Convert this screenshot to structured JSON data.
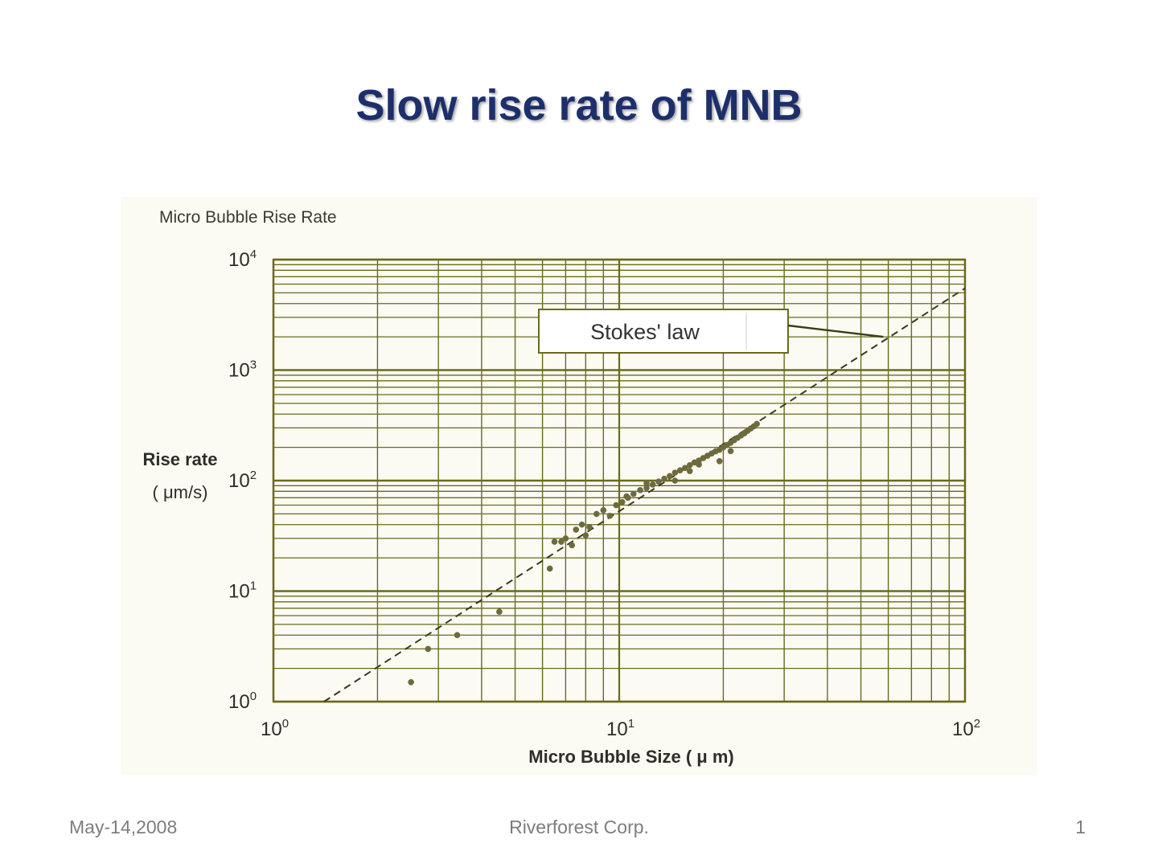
{
  "slide": {
    "title": "Slow rise rate of MNB",
    "date": "May-14,2008",
    "company": "Riverforest Corp.",
    "page_number": "1"
  },
  "chart_data": {
    "type": "scatter",
    "title": "Micro Bubble Rise Rate",
    "xlabel": "Micro Bubble Size ( μ m)",
    "ylabel": "Rise rate",
    "ylabel_unit": "( μm/s)",
    "x_scale": "log",
    "y_scale": "log",
    "xlim": [
      1,
      100
    ],
    "ylim": [
      1,
      10000
    ],
    "x_ticks": [
      {
        "base": "10",
        "exp": "0",
        "value": 1
      },
      {
        "base": "10",
        "exp": "1",
        "value": 10
      },
      {
        "base": "10",
        "exp": "2",
        "value": 100
      }
    ],
    "y_ticks": [
      {
        "base": "10",
        "exp": "0",
        "value": 1
      },
      {
        "base": "10",
        "exp": "1",
        "value": 10
      },
      {
        "base": "10",
        "exp": "2",
        "value": 100
      },
      {
        "base": "10",
        "exp": "3",
        "value": 1000
      },
      {
        "base": "10",
        "exp": "4",
        "value": 10000
      }
    ],
    "grid": true,
    "line_color": "#6b6a1c",
    "series": [
      {
        "type": "scatter",
        "points": [
          [
            2.5,
            1.5
          ],
          [
            2.8,
            3.0
          ],
          [
            3.4,
            4.0
          ],
          [
            4.5,
            6.5
          ],
          [
            6.3,
            16
          ],
          [
            6.5,
            28
          ],
          [
            6.8,
            28
          ],
          [
            7.0,
            30
          ],
          [
            7.3,
            26
          ],
          [
            7.5,
            36
          ],
          [
            7.8,
            40
          ],
          [
            8.0,
            32
          ],
          [
            8.2,
            38
          ],
          [
            8.6,
            50
          ],
          [
            9.0,
            54
          ],
          [
            9.4,
            48
          ],
          [
            9.8,
            60
          ],
          [
            10.2,
            64
          ],
          [
            10.6,
            70
          ],
          [
            11.0,
            76
          ],
          [
            11.5,
            82
          ],
          [
            12.0,
            86
          ],
          [
            12.5,
            92
          ],
          [
            13.0,
            98
          ],
          [
            13.5,
            104
          ],
          [
            14.0,
            110
          ],
          [
            14.5,
            118
          ],
          [
            15.0,
            124
          ],
          [
            15.5,
            130
          ],
          [
            16.0,
            138
          ],
          [
            16.5,
            146
          ],
          [
            17.0,
            152
          ],
          [
            17.5,
            160
          ],
          [
            18.0,
            168
          ],
          [
            18.5,
            176
          ],
          [
            19.0,
            184
          ],
          [
            19.5,
            190
          ],
          [
            20.0,
            200
          ],
          [
            20.5,
            210
          ],
          [
            21.0,
            220
          ],
          [
            21.5,
            232
          ],
          [
            22.0,
            244
          ],
          [
            22.5,
            256
          ],
          [
            23.0,
            268
          ],
          [
            23.5,
            282
          ],
          [
            24.0,
            296
          ],
          [
            24.5,
            310
          ],
          [
            25.0,
            326
          ],
          [
            17.0,
            140
          ],
          [
            19.5,
            150
          ],
          [
            21.0,
            185
          ],
          [
            14.5,
            100
          ],
          [
            12.0,
            95
          ],
          [
            10.5,
            72
          ],
          [
            16.0,
            122
          ]
        ]
      },
      {
        "type": "dashed-line",
        "name": "Stokes' law",
        "points": [
          [
            1.4,
            1
          ],
          [
            100,
            5500
          ]
        ]
      }
    ],
    "annotations": [
      {
        "text": "Stokes' law",
        "x": 58,
        "y": 2000
      }
    ]
  }
}
